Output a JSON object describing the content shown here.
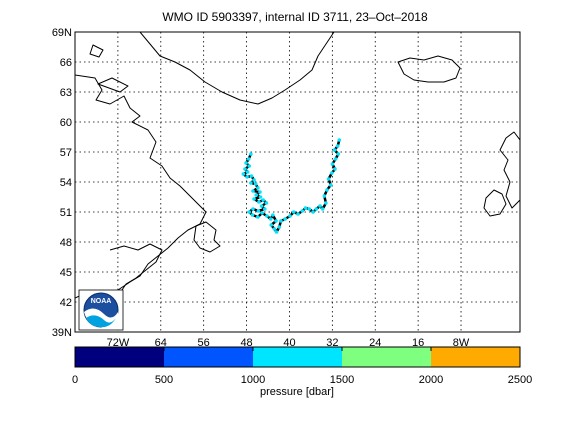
{
  "title": "WMO ID 5903397, internal ID 3711, 23–Oct–2018",
  "map": {
    "lat_range": [
      39,
      69
    ],
    "lon_range": [
      -80,
      3
    ],
    "lat_ticks": [
      39,
      42,
      45,
      48,
      51,
      54,
      57,
      60,
      63,
      66,
      69
    ],
    "lat_tick_labels": [
      "39N",
      "42",
      "45",
      "48",
      "51",
      "54",
      "57",
      "60",
      "63",
      "66",
      "69N"
    ],
    "lon_ticks": [
      -72,
      -64,
      -56,
      -48,
      -40,
      -32,
      -24,
      -16,
      -8
    ],
    "lon_tick_labels": [
      "72W",
      "64",
      "56",
      "48",
      "40",
      "32",
      "24",
      "16",
      "8W"
    ],
    "grid": true,
    "logo_text": "NOAA"
  },
  "colorbar": {
    "label": "pressure [dbar]",
    "range": [
      0,
      2500
    ],
    "ticks": [
      0,
      500,
      1000,
      1500,
      2000,
      2500
    ],
    "tick_labels": [
      "0",
      "500",
      "1000",
      "1500",
      "2000",
      "2500"
    ],
    "colors": [
      "#00007f",
      "#0055ff",
      "#00e5ff",
      "#7fff7f",
      "#ffaa00"
    ]
  },
  "chart_data": {
    "type": "scatter",
    "x_axis": "longitude",
    "y_axis": "latitude",
    "trajectory_color": "#000000",
    "profile_color": "#00e5ff",
    "points": [
      [
        -47.2,
        56.8
      ],
      [
        -47.6,
        56.3
      ],
      [
        -48.1,
        55.9
      ],
      [
        -47.5,
        55.6
      ],
      [
        -48.3,
        55.3
      ],
      [
        -47.8,
        55.0
      ],
      [
        -48.6,
        54.8
      ],
      [
        -47.9,
        54.5
      ],
      [
        -47.1,
        54.6
      ],
      [
        -46.6,
        54.2
      ],
      [
        -47.2,
        53.9
      ],
      [
        -46.3,
        53.8
      ],
      [
        -45.9,
        53.4
      ],
      [
        -46.8,
        53.1
      ],
      [
        -45.5,
        53.0
      ],
      [
        -46.2,
        52.7
      ],
      [
        -45.4,
        52.5
      ],
      [
        -46.6,
        52.3
      ],
      [
        -45.7,
        52.0
      ],
      [
        -44.9,
        52.2
      ],
      [
        -44.3,
        51.9
      ],
      [
        -45.2,
        51.6
      ],
      [
        -44.6,
        51.3
      ],
      [
        -45.8,
        51.1
      ],
      [
        -46.8,
        51.3
      ],
      [
        -47.5,
        51.0
      ],
      [
        -46.9,
        50.7
      ],
      [
        -45.9,
        50.5
      ],
      [
        -45.1,
        50.9
      ],
      [
        -44.2,
        50.6
      ],
      [
        -43.5,
        50.3
      ],
      [
        -43.1,
        50.7
      ],
      [
        -42.5,
        50.1
      ],
      [
        -43.4,
        49.7
      ],
      [
        -42.8,
        49.3
      ],
      [
        -42.4,
        49.0
      ],
      [
        -41.9,
        49.5
      ],
      [
        -41.6,
        50.1
      ],
      [
        -40.8,
        50.3
      ],
      [
        -39.9,
        50.6
      ],
      [
        -39.2,
        51.0
      ],
      [
        -38.4,
        50.8
      ],
      [
        -37.6,
        51.1
      ],
      [
        -37.0,
        51.4
      ],
      [
        -36.3,
        51.3
      ],
      [
        -35.6,
        51.0
      ],
      [
        -35.0,
        51.3
      ],
      [
        -34.3,
        51.6
      ],
      [
        -33.8,
        51.3
      ],
      [
        -33.2,
        51.9
      ],
      [
        -33.5,
        52.6
      ],
      [
        -33.0,
        53.2
      ],
      [
        -32.3,
        53.7
      ],
      [
        -32.7,
        54.3
      ],
      [
        -32.1,
        54.9
      ],
      [
        -31.5,
        55.3
      ],
      [
        -32.0,
        55.8
      ],
      [
        -31.4,
        56.3
      ],
      [
        -30.9,
        56.8
      ],
      [
        -31.6,
        57.2
      ],
      [
        -31.0,
        57.6
      ],
      [
        -30.7,
        58.2
      ]
    ]
  }
}
